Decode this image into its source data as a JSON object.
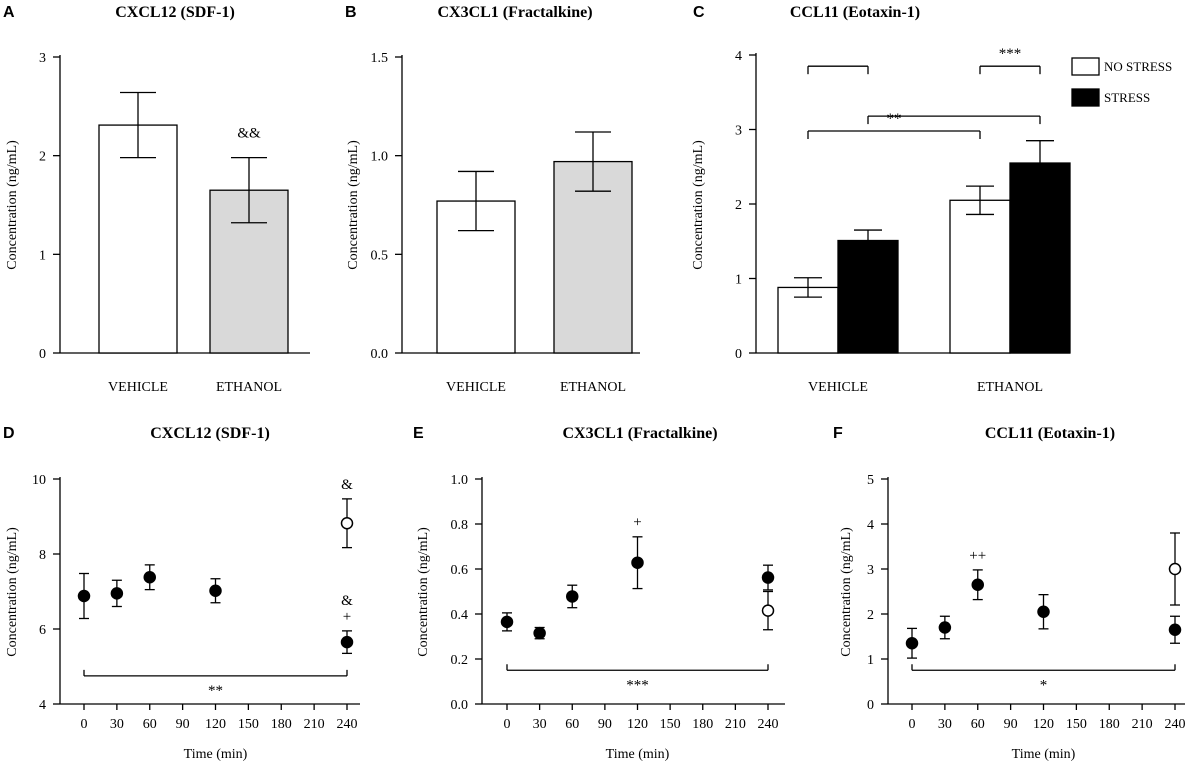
{
  "colors": {
    "axis": "#000000",
    "no_stress_fill": "#ffffff",
    "stress_fill": "#000000",
    "ethanol_fill": "#d9d9d9",
    "vehicle_fill": "#ffffff"
  },
  "chart_data": [
    {
      "panel": "A",
      "type": "bar",
      "title": "CXCL12 (SDF-1)",
      "ylabel": "Concentration (ng/mL)",
      "xlabel": "",
      "ylim": [
        0,
        3
      ],
      "yticks": [
        "0",
        "1",
        "2",
        "3"
      ],
      "categories": [
        "VEHICLE",
        "ETHANOL"
      ],
      "values": [
        2.31,
        1.65
      ],
      "errors": [
        0.33,
        0.33
      ],
      "fills": [
        "vehicle_fill",
        "ethanol_fill"
      ],
      "annotations": [
        {
          "category_index": 1,
          "text": "&&"
        }
      ]
    },
    {
      "panel": "B",
      "type": "bar",
      "title": "CX3CL1 (Fractalkine)",
      "ylabel": "Concentration (ng/mL)",
      "xlabel": "",
      "ylim": [
        0,
        1.5
      ],
      "yticks": [
        "0.0",
        "0.5",
        "1.0",
        "1.5"
      ],
      "categories": [
        "VEHICLE",
        "ETHANOL"
      ],
      "values": [
        0.77,
        0.97
      ],
      "errors": [
        0.15,
        0.15
      ],
      "fills": [
        "vehicle_fill",
        "ethanol_fill"
      ],
      "annotations": []
    },
    {
      "panel": "C",
      "type": "bar",
      "title": "CCL11 (Eotaxin-1)",
      "ylabel": "Concentration (ng/mL)",
      "xlabel": "",
      "ylim": [
        0,
        4
      ],
      "yticks": [
        "0",
        "1",
        "2",
        "3",
        "4"
      ],
      "categories": [
        "VEHICLE",
        "ETHANOL"
      ],
      "series": [
        {
          "name": "NO STRESS",
          "values": [
            0.88,
            2.05
          ],
          "errors": [
            0.13,
            0.19
          ]
        },
        {
          "name": "STRESS",
          "values": [
            1.51,
            2.55
          ],
          "errors": [
            0.14,
            0.3
          ]
        }
      ],
      "legend": [
        "NO STRESS",
        "STRESS"
      ],
      "legend_position": "top-right",
      "significance": [
        {
          "label": "",
          "from": "VEHICLE",
          "to": "VEHICLE",
          "level": 3.85
        },
        {
          "label": "***",
          "from": "ETHANOL",
          "to": "ETHANOL",
          "level": 3.85
        },
        {
          "label": "**",
          "from": "VEHICLE NO STRESS",
          "to": "ETHANOL NO STRESS",
          "level": 2.98
        },
        {
          "label": "",
          "from": "VEHICLE STRESS",
          "to": "ETHANOL STRESS",
          "level": 3.18
        }
      ]
    },
    {
      "panel": "D",
      "type": "scatter",
      "title": "CXCL12 (SDF-1)",
      "ylabel": "Concentration (ng/mL)",
      "xlabel": "Time (min)",
      "ylim": [
        4,
        10
      ],
      "yticks": [
        "4",
        "6",
        "8",
        "10"
      ],
      "xticks": [
        "0",
        "30",
        "60",
        "90",
        "120",
        "150",
        "180",
        "210",
        "240"
      ],
      "series": [
        {
          "name": "filled",
          "x": [
            0,
            30,
            60,
            120,
            240
          ],
          "y": [
            6.88,
            6.95,
            7.38,
            7.02,
            5.65
          ],
          "errors": [
            0.6,
            0.35,
            0.33,
            0.32,
            0.3
          ]
        },
        {
          "name": "open",
          "x": [
            240
          ],
          "y": [
            8.82
          ],
          "errors": [
            0.65
          ]
        }
      ],
      "point_annotations": [
        {
          "x": 240,
          "y_ref": 9.47,
          "text": "&"
        },
        {
          "x": 240,
          "y_ref": 5.95,
          "text": "+"
        },
        {
          "x": 240,
          "y_ref": 5.95,
          "text": "&"
        }
      ],
      "bracket": {
        "label": "**",
        "from": 0,
        "to": 240,
        "level": 4.75
      }
    },
    {
      "panel": "E",
      "type": "scatter",
      "title": "CX3CL1 (Fractalkine)",
      "ylabel": "Concentration (ng/mL)",
      "xlabel": "Time (min)",
      "ylim": [
        0,
        1.0
      ],
      "yticks": [
        "0.0",
        "0.2",
        "0.4",
        "0.6",
        "0.8",
        "1.0"
      ],
      "xticks": [
        "0",
        "30",
        "60",
        "90",
        "120",
        "150",
        "180",
        "210",
        "240"
      ],
      "series": [
        {
          "name": "filled",
          "x": [
            0,
            30,
            60,
            120,
            240
          ],
          "y": [
            0.365,
            0.315,
            0.478,
            0.628,
            0.562
          ],
          "errors": [
            0.04,
            0.025,
            0.05,
            0.115,
            0.055
          ]
        },
        {
          "name": "open",
          "x": [
            240
          ],
          "y": [
            0.415
          ],
          "errors": [
            0.085
          ]
        }
      ],
      "point_annotations": [
        {
          "x": 120,
          "y_ref": 0.745,
          "text": "+"
        }
      ],
      "bracket": {
        "label": "***",
        "from": 0,
        "to": 240,
        "level": 0.15
      }
    },
    {
      "panel": "F",
      "type": "scatter",
      "title": "CCL11 (Eotaxin-1)",
      "ylabel": "Concentration (ng/mL)",
      "xlabel": "Time (min)",
      "ylim": [
        0,
        5
      ],
      "yticks": [
        "0",
        "1",
        "2",
        "3",
        "4",
        "5"
      ],
      "xticks": [
        "0",
        "30",
        "60",
        "90",
        "120",
        "150",
        "180",
        "210",
        "240"
      ],
      "series": [
        {
          "name": "filled",
          "x": [
            0,
            30,
            60,
            120,
            240
          ],
          "y": [
            1.35,
            1.7,
            2.65,
            2.05,
            1.65
          ],
          "errors": [
            0.33,
            0.25,
            0.33,
            0.38,
            0.3
          ]
        },
        {
          "name": "open",
          "x": [
            240
          ],
          "y": [
            3.0
          ],
          "errors": [
            0.8
          ]
        }
      ],
      "point_annotations": [
        {
          "x": 60,
          "y_ref": 2.98,
          "text": "++"
        }
      ],
      "bracket": {
        "label": "*",
        "from": 0,
        "to": 240,
        "level": 0.75
      }
    }
  ]
}
